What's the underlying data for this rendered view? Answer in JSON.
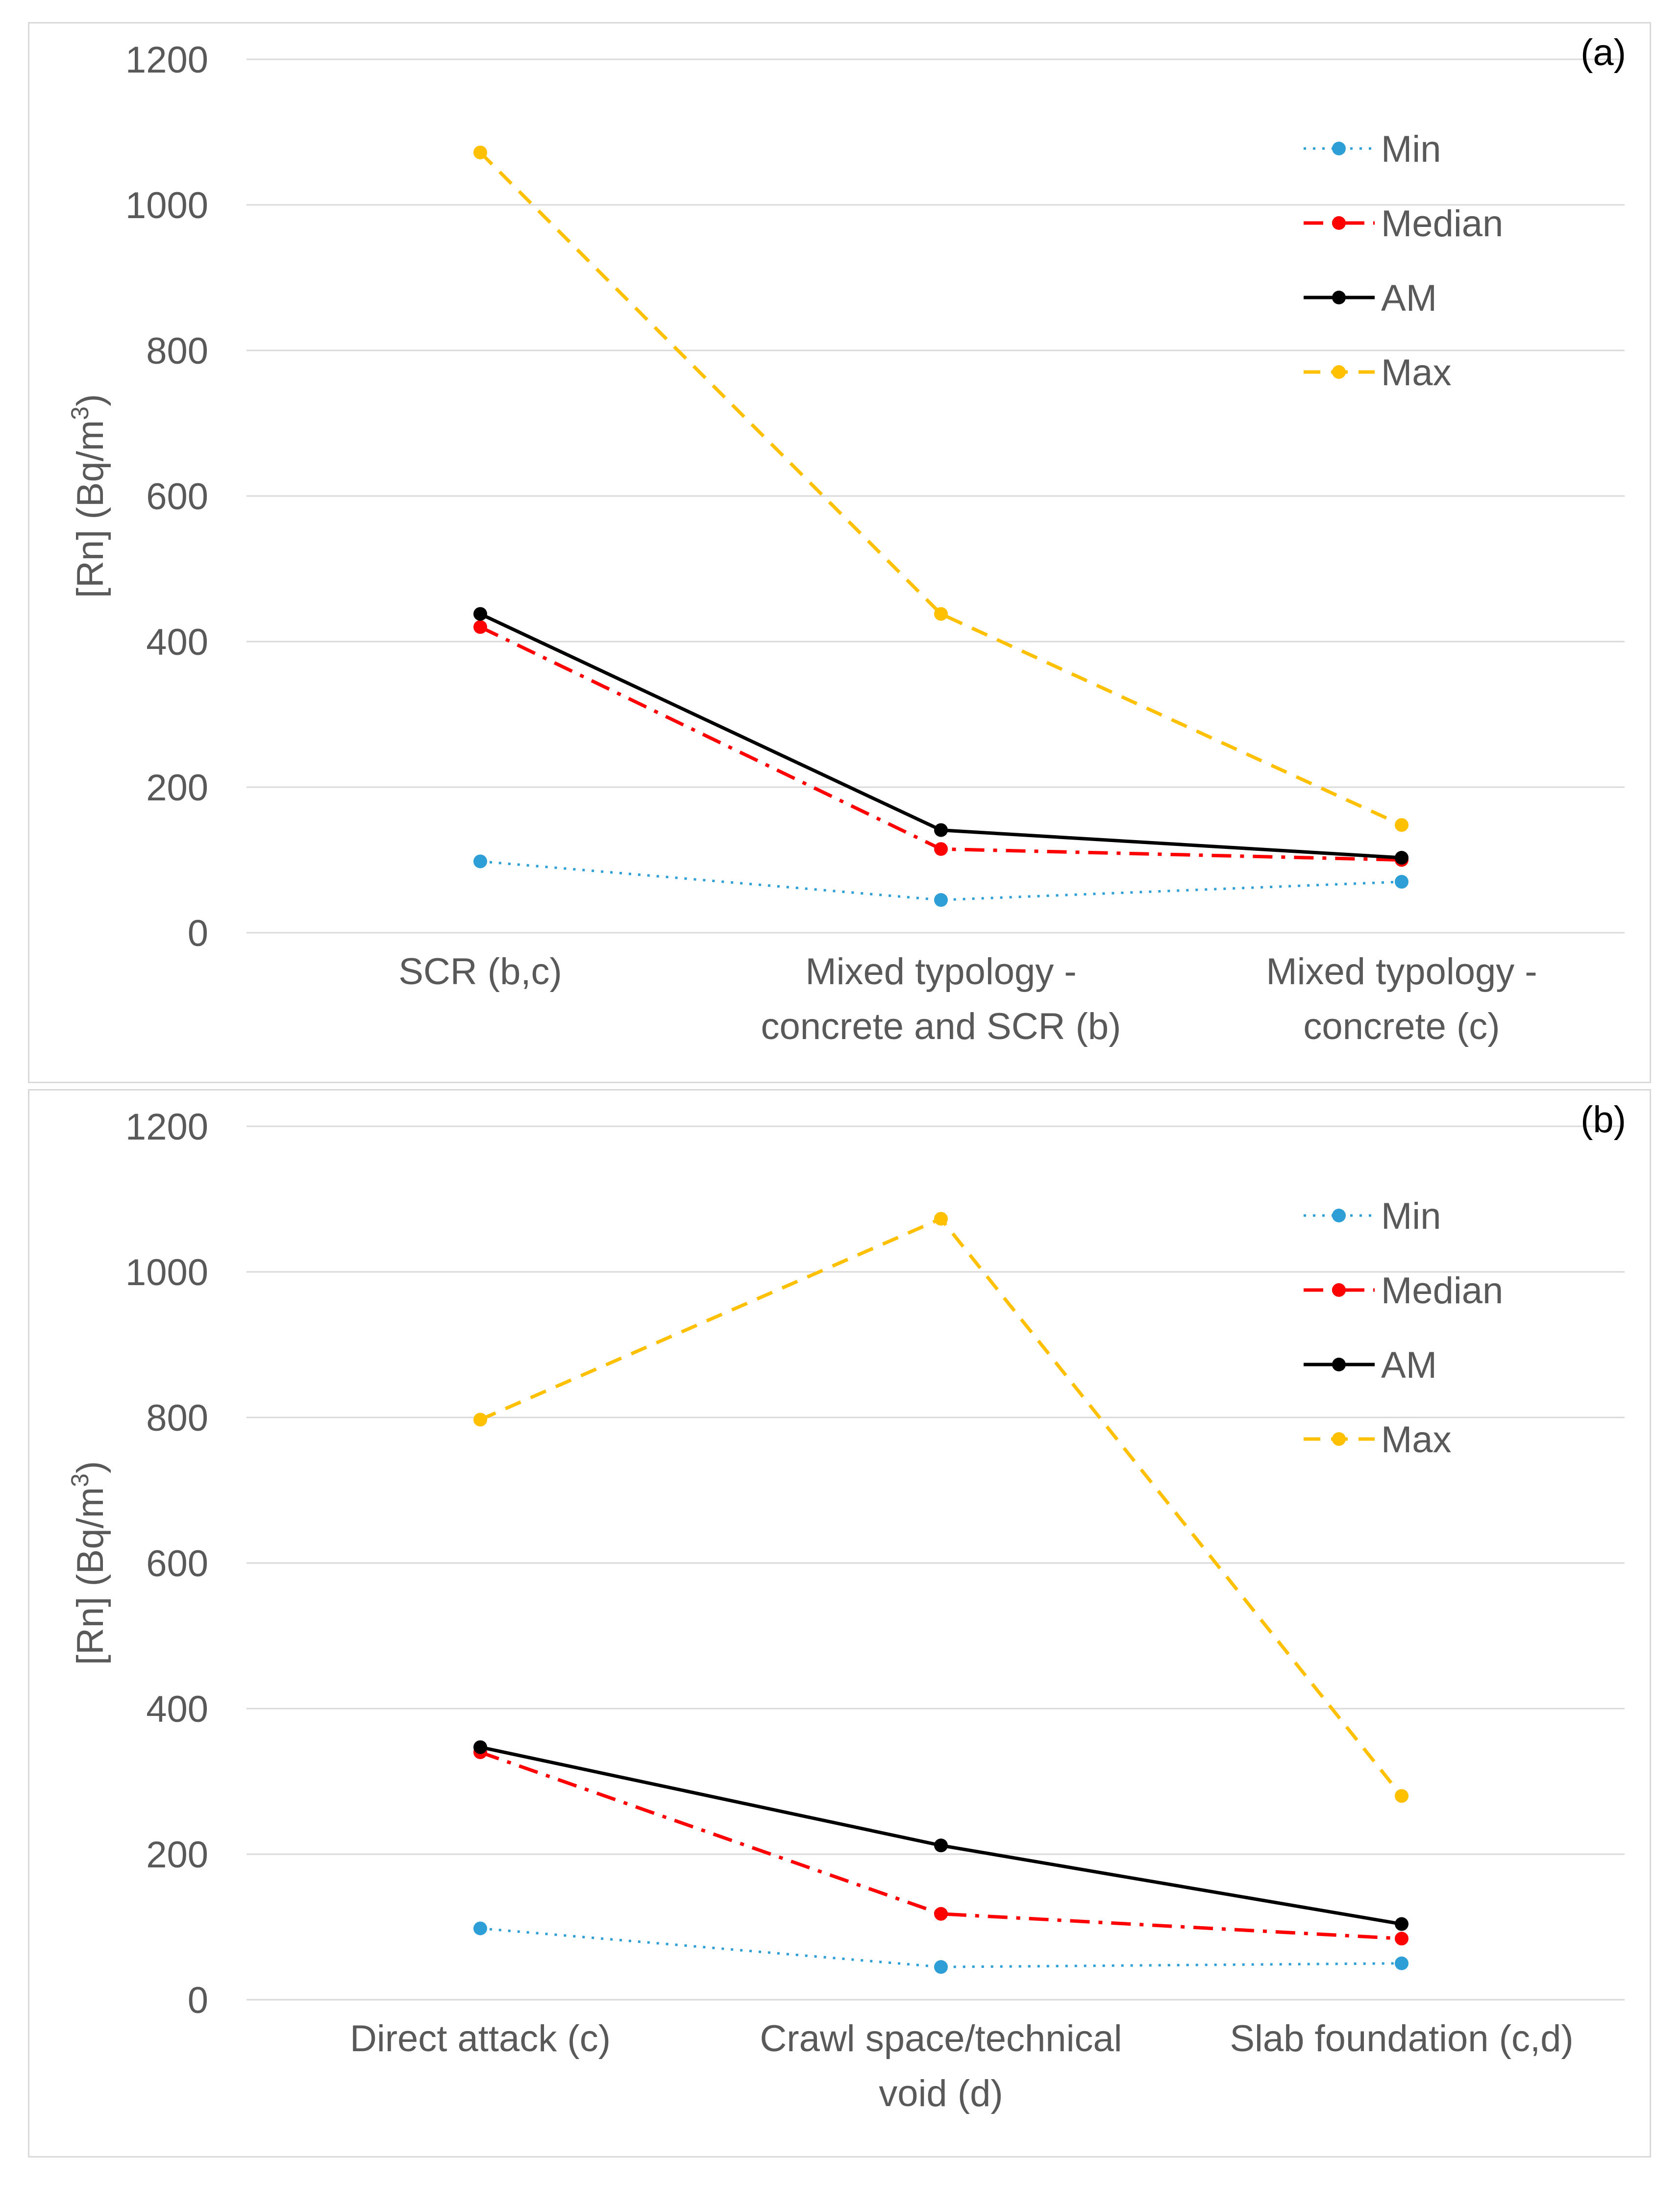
{
  "colors": {
    "Min": "#2e9fd6",
    "Median": "#ff0000",
    "AM": "#000000",
    "Max": "#ffc000",
    "grid": "#d9d9d9",
    "tick_text": "#595959"
  },
  "chart_data": [
    {
      "type": "line",
      "panel_label": "(a)",
      "ylabel_main": "[Rn] (Bq/m",
      "ylabel_sup": "3",
      "ylabel_close": ")",
      "ylim": [
        0,
        1200
      ],
      "yticks": [
        0,
        200,
        400,
        600,
        800,
        1000,
        1200
      ],
      "grid": true,
      "legend": "top-right",
      "categories": [
        [
          "SCR (b,c)"
        ],
        [
          "Mixed typology -",
          "concrete and SCR (b)"
        ],
        [
          "Mixed typology -",
          "concrete (c)"
        ]
      ],
      "series": [
        {
          "name": "Min",
          "values": [
            98,
            45,
            70
          ]
        },
        {
          "name": "Median",
          "values": [
            420,
            115,
            100
          ]
        },
        {
          "name": "AM",
          "values": [
            438,
            141,
            103
          ]
        },
        {
          "name": "Max",
          "values": [
            1072,
            438,
            148
          ]
        }
      ]
    },
    {
      "type": "line",
      "panel_label": "(b)",
      "ylabel_main": "[Rn] (Bq/m",
      "ylabel_sup": "3",
      "ylabel_close": ")",
      "ylim": [
        0,
        1200
      ],
      "yticks": [
        0,
        200,
        400,
        600,
        800,
        1000,
        1200
      ],
      "grid": true,
      "legend": "top-right",
      "categories": [
        [
          "Direct attack (c)"
        ],
        [
          "Crawl space/technical",
          "void (d)"
        ],
        [
          "Slab foundation (c,d)"
        ]
      ],
      "series": [
        {
          "name": "Min",
          "values": [
            98,
            45,
            50
          ]
        },
        {
          "name": "Median",
          "values": [
            340,
            118,
            84
          ]
        },
        {
          "name": "AM",
          "values": [
            347,
            212,
            104
          ]
        },
        {
          "name": "Max",
          "values": [
            797,
            1073,
            280
          ]
        }
      ]
    }
  ]
}
